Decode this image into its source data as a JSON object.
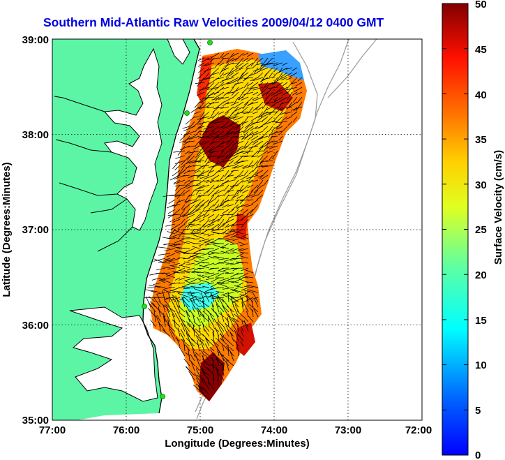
{
  "title": "Southern Mid-Atlantic Raw Velocities 2009/04/12 0400 GMT",
  "x_axis": {
    "label": "Longitude (Degrees:Minutes)",
    "ticks": [
      "77:00",
      "76:00",
      "75:00",
      "74:00",
      "73:00",
      "72:00"
    ]
  },
  "y_axis": {
    "label": "Latitude (Degrees:Minutes)",
    "ticks": [
      "39:00",
      "38:00",
      "37:00",
      "36:00",
      "35:00"
    ]
  },
  "colorbar": {
    "label": "Surface Velocity (cm/s)",
    "ticks": [
      "50",
      "45",
      "40",
      "35",
      "30",
      "25",
      "20",
      "15",
      "10",
      "5",
      "0"
    ],
    "min": 0,
    "max": 50
  },
  "chart_data": {
    "type": "heatmap",
    "title": "Southern Mid-Atlantic Raw Velocities 2009/04/12 0400 GMT",
    "xlabel": "Longitude (Degrees:Minutes)",
    "ylabel": "Latitude (Degrees:Minutes)",
    "xlim": [
      -77,
      -72
    ],
    "ylim": [
      35,
      39
    ],
    "colorbar_range_cm_s": [
      0,
      50
    ],
    "colors": {
      "land": "#5cf5a5",
      "ocean": "#ffffff",
      "grid": "#000000",
      "coast": "#000000",
      "bathymetry": "#999999",
      "station": "#22dd22",
      "title": "#0000e0"
    }
  }
}
